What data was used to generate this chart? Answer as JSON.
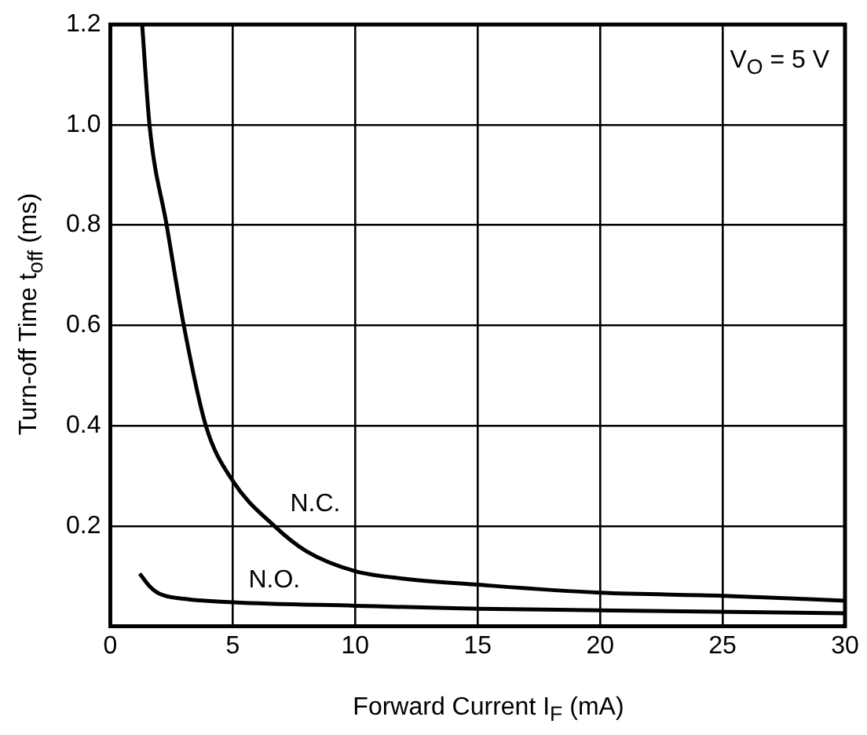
{
  "chart_data": {
    "type": "line",
    "xlabel": "Forward Current  I$_{F}$ (mA)",
    "ylabel": "Turn-off Time  t$_{off}$ (ms)",
    "annotations": [
      "V$_{O}$ = 5 V"
    ],
    "xlim": [
      0,
      30
    ],
    "xticks": [
      0,
      5,
      10,
      15,
      20,
      25,
      30
    ],
    "ylim": [
      0,
      1.2
    ],
    "yticks": [
      {
        "value": 0,
        "label": null
      },
      0.2,
      0.4,
      0.6,
      0.8,
      {
        "value": 1,
        "label": "1.0"
      },
      1.2
    ],
    "grid": true,
    "legend": false,
    "marker": "none",
    "line_style": "solid",
    "series": [
      {
        "name": "N.C.",
        "color": "#000000",
        "x": [
          1.3,
          1.6,
          2.3,
          3,
          3.9,
          5,
          6.7,
          8,
          10,
          12,
          15,
          20,
          25,
          30
        ],
        "values": [
          1.2,
          1.0,
          0.8,
          0.6,
          0.4,
          0.29,
          0.2,
          0.15,
          0.11,
          0.095,
          0.083,
          0.067,
          0.061,
          0.051
        ]
      },
      {
        "name": "N.O.",
        "color": "#000000",
        "x": [
          1.2,
          1.6,
          2,
          3,
          5,
          10,
          15,
          20,
          30
        ],
        "values": [
          0.105,
          0.08,
          0.065,
          0.055,
          0.048,
          0.041,
          0.035,
          0.032,
          0.026
        ]
      }
    ]
  }
}
